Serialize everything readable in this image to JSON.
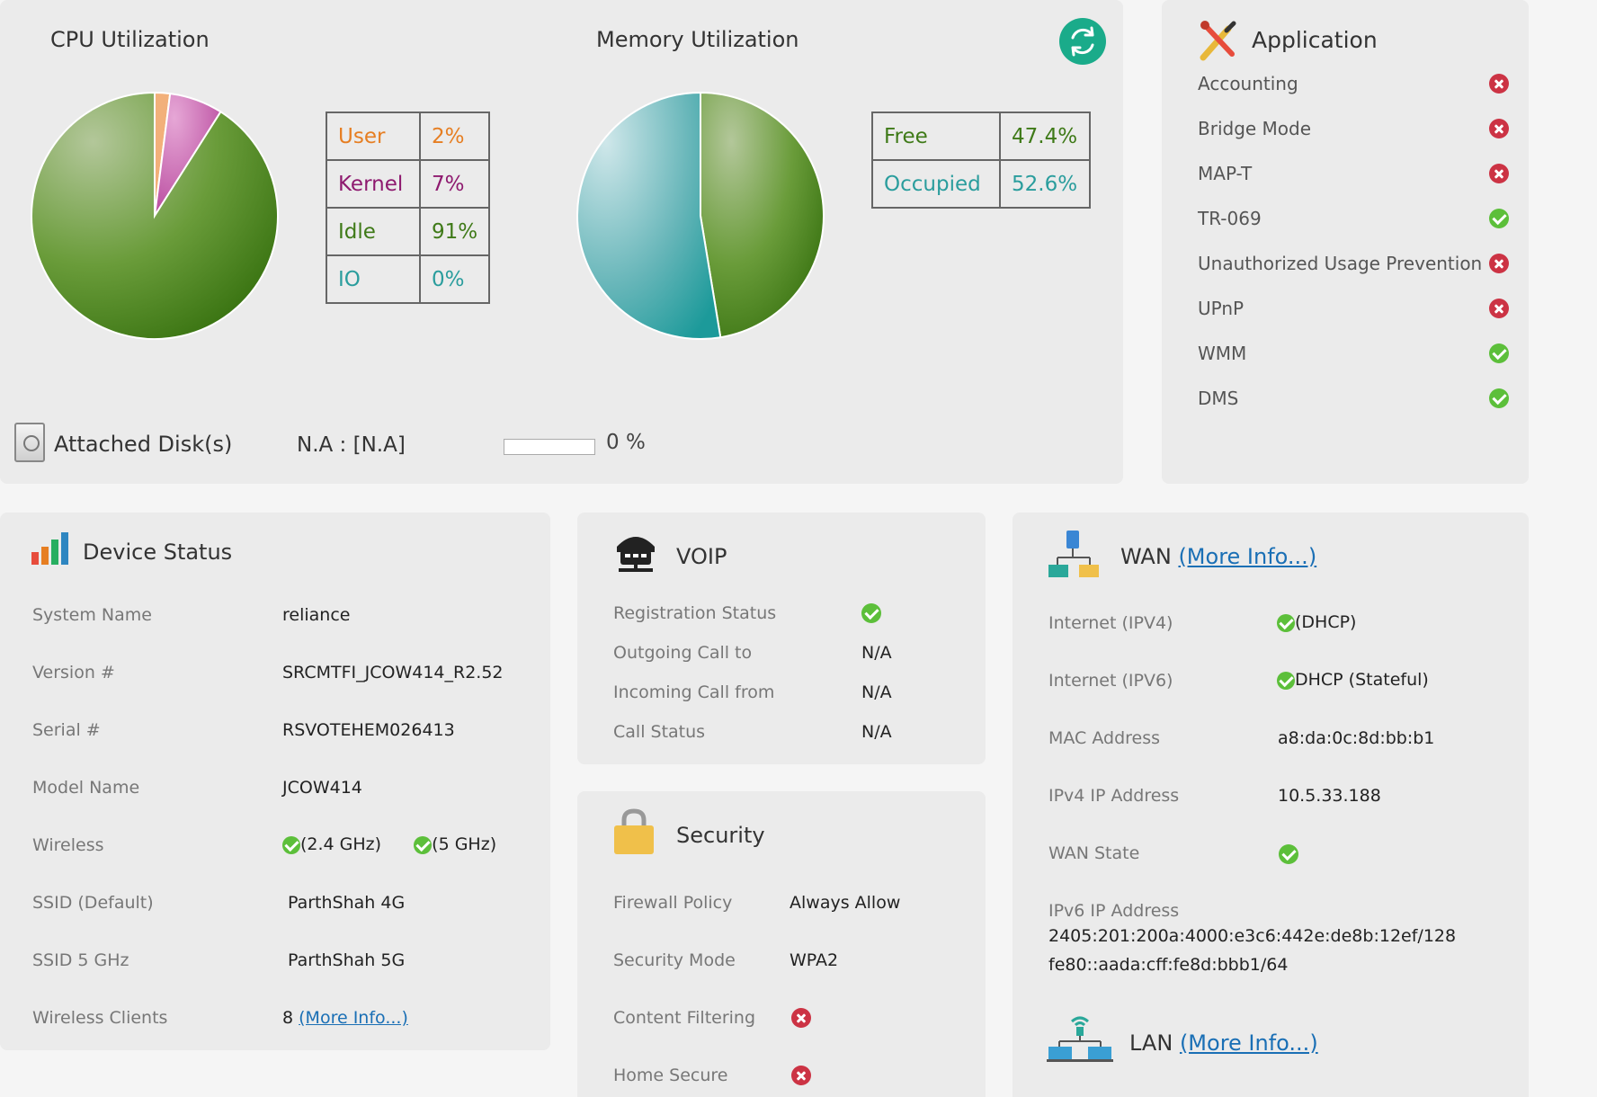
{
  "cpu": {
    "title": "CPU Utilization",
    "legend": [
      {
        "label": "User",
        "value": "2%",
        "color": "#e67e22"
      },
      {
        "label": "Kernel",
        "value": "7%",
        "color": "#8e1a6f"
      },
      {
        "label": "Idle",
        "value": "91%",
        "color": "#3f7a18"
      },
      {
        "label": "IO",
        "value": "0%",
        "color": "#2a9d9d"
      }
    ]
  },
  "memory": {
    "title": "Memory Utilization",
    "refresh_icon": "refresh-icon",
    "legend": [
      {
        "label": "Free",
        "value": "47.4%",
        "color": "#3f7a18"
      },
      {
        "label": "Occupied",
        "value": "52.6%",
        "color": "#2a9d9d"
      }
    ]
  },
  "disk": {
    "label": "Attached Disk(s)",
    "name": "N.A : [N.A]",
    "percent_text": "0 %",
    "usage_fraction": 0
  },
  "application": {
    "title": "Application",
    "items": [
      {
        "name": "Accounting",
        "status": "disabled"
      },
      {
        "name": "Bridge Mode",
        "status": "disabled"
      },
      {
        "name": "MAP-T",
        "status": "disabled"
      },
      {
        "name": "TR-069",
        "status": "enabled"
      },
      {
        "name": "Unauthorized Usage Prevention",
        "status": "disabled"
      },
      {
        "name": "UPnP",
        "status": "disabled"
      },
      {
        "name": "WMM",
        "status": "enabled"
      },
      {
        "name": "DMS",
        "status": "enabled"
      }
    ]
  },
  "device": {
    "title": "Device Status",
    "rows": [
      {
        "label": "System Name",
        "value": "reliance"
      },
      {
        "label": "Version #",
        "value": "SRCMTFI_JCOW414_R2.52"
      },
      {
        "label": "Serial #",
        "value": "RSVOTEHEM026413"
      },
      {
        "label": "Model Name",
        "value": "JCOW414"
      },
      {
        "label": "Wireless",
        "band1": "(2.4 GHz)",
        "band2": "(5 GHz)"
      },
      {
        "label": "SSID (Default)",
        "value": "ParthShah 4G"
      },
      {
        "label": "SSID 5 GHz",
        "value": "ParthShah 5G"
      },
      {
        "label": "Wireless Clients",
        "value": "8",
        "link": "(More Info...)"
      }
    ]
  },
  "voip": {
    "title": "VOIP",
    "rows": [
      {
        "label": "Registration Status",
        "value": ""
      },
      {
        "label": "Outgoing Call to",
        "value": "N/A"
      },
      {
        "label": "Incoming Call from",
        "value": "N/A"
      },
      {
        "label": "Call Status",
        "value": "N/A"
      }
    ]
  },
  "security": {
    "title": "Security",
    "rows": [
      {
        "label": "Firewall Policy",
        "value": "Always Allow"
      },
      {
        "label": "Security Mode",
        "value": "WPA2"
      },
      {
        "label": "Content Filtering",
        "value": ""
      },
      {
        "label": "Home Secure",
        "value": ""
      }
    ]
  },
  "wan": {
    "title": "WAN",
    "link": "(More Info...)",
    "rows": [
      {
        "label": "Internet (IPV4)",
        "value": "(DHCP)"
      },
      {
        "label": "Internet (IPV6)",
        "value": "DHCP (Stateful)"
      },
      {
        "label": "MAC Address",
        "value": "a8:da:0c:8d:bb:b1"
      },
      {
        "label": "IPv4 IP Address",
        "value": "10.5.33.188"
      },
      {
        "label": "WAN State",
        "value": ""
      },
      {
        "label": "IPv6 IP Address",
        "value": ""
      }
    ],
    "ipv6_lines": [
      "2405:201:200a:4000:e3c6:442e:de8b:12ef/128",
      "fe80::aada:cff:fe8d:bbb1/64"
    ]
  },
  "lan": {
    "title": "LAN",
    "link": "(More Info...)"
  }
}
